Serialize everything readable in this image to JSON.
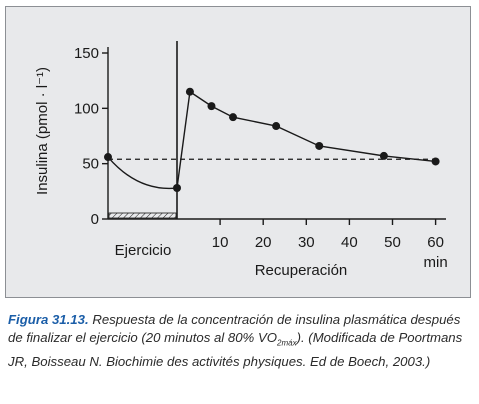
{
  "chart_data": {
    "type": "line",
    "ylabel": "Insulina (pmol · l⁻¹)",
    "y_ticks": [
      0,
      50,
      100,
      150
    ],
    "ylim": [
      0,
      158
    ],
    "x_ticks": [
      10,
      20,
      30,
      40,
      50,
      60
    ],
    "x_unit": "min",
    "xlabel": "Recuperación",
    "exercise_label": "Ejercicio",
    "exercise_phase": {
      "points": [
        [
          0,
          56
        ],
        [
          1,
          28
        ]
      ]
    },
    "recovery_series": {
      "x": [
        0,
        3,
        8,
        13,
        23,
        33,
        48,
        60
      ],
      "y": [
        28,
        115,
        102,
        92,
        84,
        66,
        57,
        52
      ]
    },
    "baseline": {
      "value": 54,
      "style": "dashed"
    },
    "exercise_bar": {
      "style": "hatched"
    }
  },
  "caption": {
    "label": "Figura 31.13.",
    "text_parts": [
      "Respuesta de la concentración de insulina plasmática después de finalizar el ejercicio (20 minutos al 80% VO",
      "2máx",
      "). (Modificada de Poortmans JR, Boisseau N. Biochimie des activités physiques. Ed de Boech, 2003.)"
    ]
  },
  "colors": {
    "panel_bg": "#e8e9eb",
    "panel_border": "#8c8f94",
    "line": "#1a1a1a",
    "caption_label": "#1b5ea8",
    "caption_text": "#2b2b2b"
  }
}
